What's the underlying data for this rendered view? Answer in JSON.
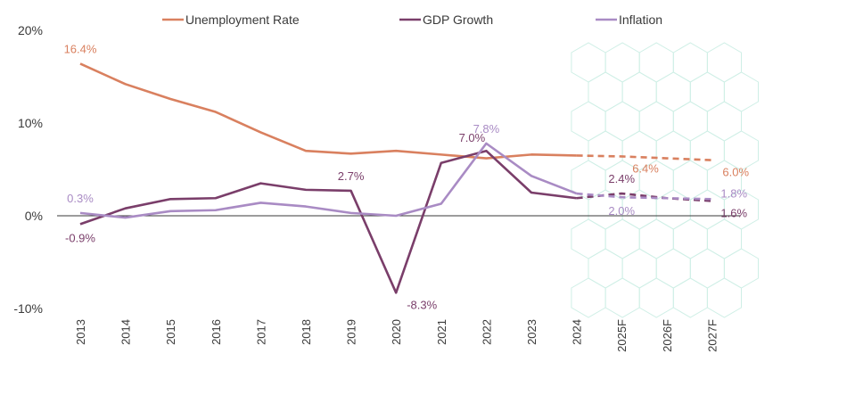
{
  "colors": {
    "unemployment": "#D9805F",
    "gdp": "#7A3E6A",
    "inflation": "#A98BC4",
    "zero_line": "#3a3a3a",
    "hex_pattern": "#CFEFE6"
  },
  "chart_data": {
    "type": "line",
    "title": "",
    "xlabel": "",
    "ylabel": "",
    "ylim": [
      -10,
      20
    ],
    "y_ticks": [
      {
        "value": 20,
        "label": "20%"
      },
      {
        "value": 10,
        "label": "10%"
      },
      {
        "value": 0,
        "label": "0%"
      },
      {
        "value": -10,
        "label": "-10%"
      }
    ],
    "categories": [
      "2013",
      "2014",
      "2015",
      "2016",
      "2017",
      "2018",
      "2019",
      "2020",
      "2021",
      "2022",
      "2023",
      "2024",
      "2025F",
      "2026F",
      "2027F"
    ],
    "forecast_start_index": 11,
    "legend_position": "top",
    "grid": false,
    "series": [
      {
        "key": "unemployment",
        "name": "Unemployment Rate",
        "values": [
          16.4,
          14.2,
          12.6,
          11.2,
          9.0,
          7.0,
          6.7,
          7.0,
          6.6,
          6.2,
          6.6,
          6.5,
          6.4,
          6.2,
          6.0
        ],
        "labels": [
          {
            "index": 0,
            "text": "16.4%",
            "pos": "above"
          },
          {
            "index": 12,
            "text": "6.4%",
            "pos": "right"
          },
          {
            "index": 14,
            "text": "6.0%",
            "pos": "right"
          }
        ]
      },
      {
        "key": "gdp",
        "name": "GDP Growth",
        "values": [
          -0.9,
          0.8,
          1.8,
          1.9,
          3.5,
          2.8,
          2.7,
          -8.3,
          5.7,
          7.0,
          2.5,
          1.9,
          2.4,
          1.9,
          1.6
        ],
        "labels": [
          {
            "index": 0,
            "text": "-0.9%",
            "pos": "below"
          },
          {
            "index": 6,
            "text": "2.7%",
            "pos": "above"
          },
          {
            "index": 7,
            "text": "-8.3%",
            "pos": "right"
          },
          {
            "index": 9,
            "text": "7.0%",
            "pos": "aboveleft"
          },
          {
            "index": 12,
            "text": "2.4%",
            "pos": "above"
          },
          {
            "index": 14,
            "text": "1.6%",
            "pos": "rightbelow"
          }
        ]
      },
      {
        "key": "inflation",
        "name": "Inflation",
        "values": [
          0.3,
          -0.2,
          0.5,
          0.6,
          1.4,
          1.0,
          0.3,
          0.0,
          1.3,
          7.8,
          4.3,
          2.4,
          2.0,
          1.9,
          1.8
        ],
        "labels": [
          {
            "index": 0,
            "text": "0.3%",
            "pos": "above"
          },
          {
            "index": 9,
            "text": "7.8%",
            "pos": "above"
          },
          {
            "index": 12,
            "text": "2.0%",
            "pos": "below"
          },
          {
            "index": 14,
            "text": "1.8%",
            "pos": "rightabove"
          }
        ]
      }
    ]
  }
}
